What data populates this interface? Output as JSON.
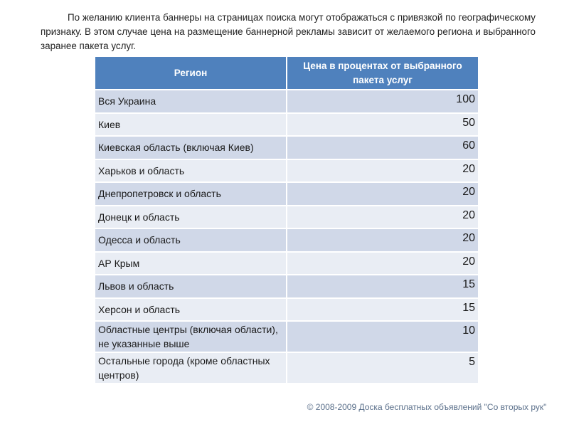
{
  "intro_text": "По желанию клиента баннеры на страницах поиска могут отображаться с привязкой по географическому признаку. В этом случае цена на размещение баннерной рекламы зависит от желаемого региона и выбранного заранее пакета услуг.",
  "table": {
    "headers": {
      "region": "Регион",
      "price": "Цена в процентах от выбранного пакета услуг"
    },
    "rows": [
      {
        "region": "Вся Украина",
        "value": "100"
      },
      {
        "region": "Киев",
        "value": "50"
      },
      {
        "region": "Киевская область (включая Киев)",
        "value": "60"
      },
      {
        "region": "Харьков и область",
        "value": "20"
      },
      {
        "region": "Днепропетровск и область",
        "value": "20"
      },
      {
        "region": "Донецк и область",
        "value": "20"
      },
      {
        "region": "Одесса и область",
        "value": "20"
      },
      {
        "region": "АР Крым",
        "value": "20"
      },
      {
        "region": "Львов и область",
        "value": "15"
      },
      {
        "region": "Херсон и область",
        "value": "15"
      },
      {
        "region": "Областные центры (включая области), не указанные выше",
        "value": "10"
      },
      {
        "region": "Остальные города (кроме областных центров)",
        "value": "5"
      }
    ]
  },
  "footer": "© 2008-2009 Доска бесплатных объявлений \"Со вторых рук\""
}
